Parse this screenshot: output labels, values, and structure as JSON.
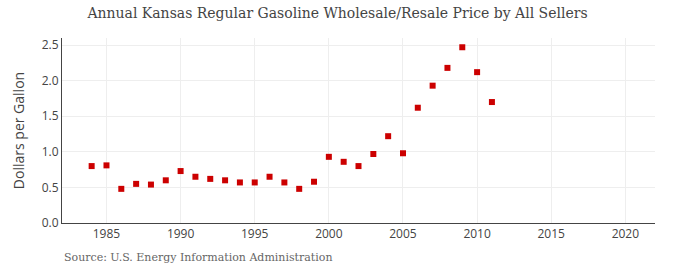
{
  "chart_data": {
    "type": "scatter",
    "title": "Annual Kansas Regular Gasoline Wholesale/Resale Price by All Sellers",
    "y_label": "Dollars per Gallon",
    "annotations": [
      "Source: U.S. Energy Information Administration"
    ],
    "x": [
      1984,
      1985,
      1986,
      1987,
      1988,
      1989,
      1990,
      1991,
      1992,
      1993,
      1994,
      1995,
      1996,
      1997,
      1998,
      1999,
      2000,
      2001,
      2002,
      2003,
      2004,
      2005,
      2006,
      2007,
      2008,
      2009,
      2010,
      2011
    ],
    "values": [
      0.8,
      0.81,
      0.48,
      0.55,
      0.54,
      0.6,
      0.73,
      0.65,
      0.62,
      0.6,
      0.57,
      0.57,
      0.65,
      0.57,
      0.48,
      0.58,
      0.93,
      0.86,
      0.8,
      0.97,
      1.22,
      0.98,
      1.62,
      1.93,
      2.18,
      2.47,
      2.12,
      1.7
    ],
    "color": "#cc0000",
    "marker": "square",
    "xlim": [
      1982,
      2022
    ],
    "xticks": [
      1985,
      1990,
      1995,
      2000,
      2005,
      2010,
      2015,
      2020
    ],
    "ylim": [
      0.0,
      2.6
    ],
    "yticks": [
      {
        "value": 0.0,
        "label": "0.0"
      },
      0.5,
      {
        "value": 1.0,
        "label": "1.0"
      },
      1.5,
      {
        "value": 2.0,
        "label": "2.0"
      },
      2.5
    ],
    "grid": true
  }
}
